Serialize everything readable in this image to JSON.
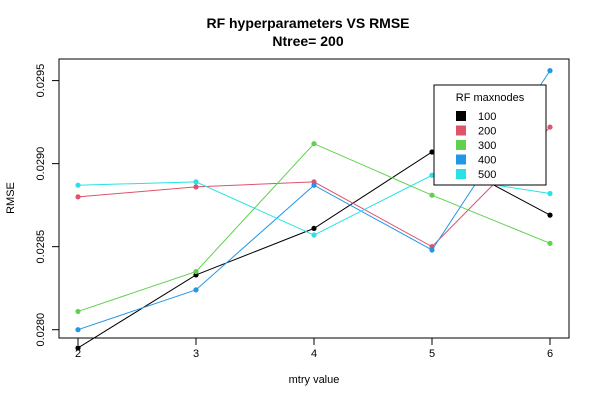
{
  "chart_data": {
    "type": "line",
    "title": "RF hyperparameters VS RMSE",
    "subtitle": "Ntree= 200",
    "xlabel": "mtry value",
    "ylabel": "RMSE",
    "x": [
      2,
      3,
      4,
      5,
      6
    ],
    "xlim": [
      2,
      6
    ],
    "ylim": [
      0.02795,
      0.02963
    ],
    "x_ticks": [
      "2",
      "3",
      "4",
      "5",
      "6"
    ],
    "y_ticks": [
      {
        "value": 0.028,
        "label": "0.0280"
      },
      {
        "value": 0.0285,
        "label": "0.0285"
      },
      {
        "value": 0.029,
        "label": "0.0290"
      },
      {
        "value": 0.0295,
        "label": "0.0295"
      }
    ],
    "grid": false,
    "legend": {
      "title": "RF maxnodes",
      "placement": "top-right"
    },
    "series": [
      {
        "name": "100",
        "color": "#000000",
        "values": [
          0.02789,
          0.02833,
          0.02861,
          0.02907,
          0.02869
        ]
      },
      {
        "name": "200",
        "color": "#DF536B",
        "values": [
          0.0288,
          0.02886,
          0.02889,
          0.0285,
          0.02922
        ]
      },
      {
        "name": "300",
        "color": "#61D04F",
        "values": [
          0.02811,
          0.02835,
          0.02912,
          0.02881,
          0.02852
        ]
      },
      {
        "name": "400",
        "color": "#2297E6",
        "values": [
          0.028,
          0.02824,
          0.02887,
          0.02848,
          0.02956
        ]
      },
      {
        "name": "500",
        "color": "#28E2E5",
        "values": [
          0.02887,
          0.02889,
          0.02857,
          0.02893,
          0.02882
        ]
      }
    ]
  }
}
